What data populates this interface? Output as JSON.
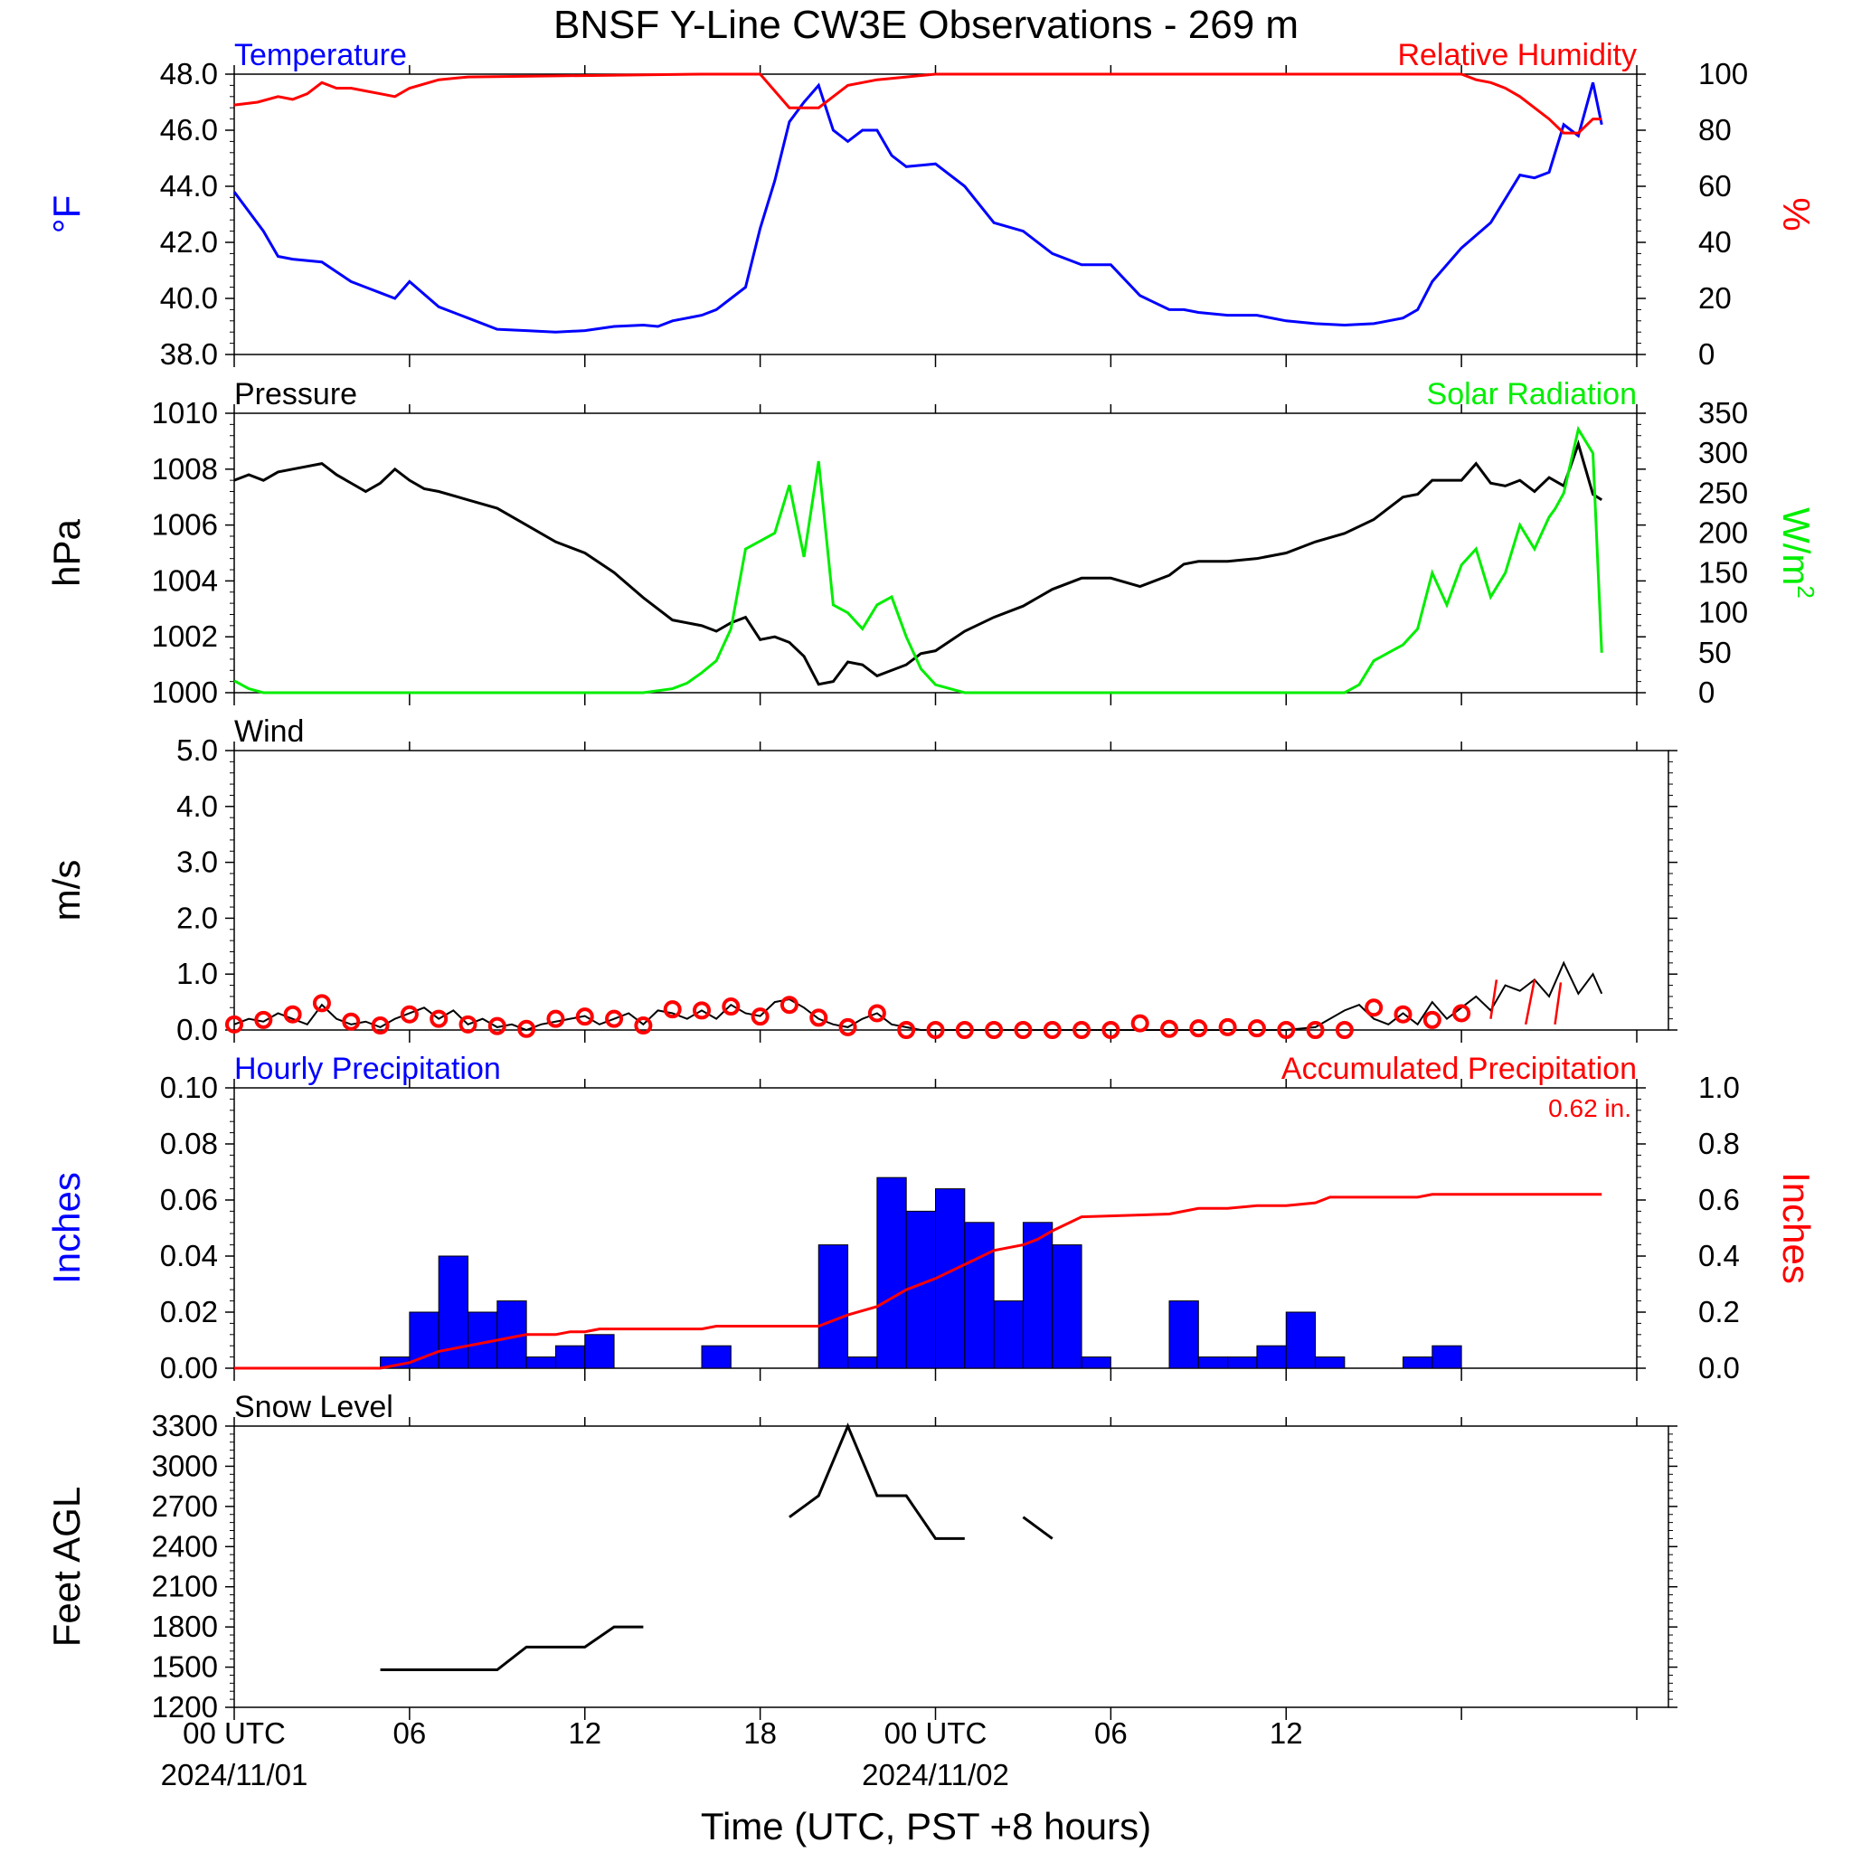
{
  "title": "BNSF Y-Line CW3E Observations - 269 m",
  "x_axis": {
    "title": "Time (UTC, PST +8 hours)",
    "tick_labels": [
      "00 UTC",
      "06",
      "12",
      "18",
      "00 UTC",
      "06",
      "12"
    ],
    "tick_hours": [
      0,
      6,
      12,
      18,
      24,
      30,
      36
    ],
    "date_labels": [
      {
        "hour": 0,
        "text": "2024/11/01"
      },
      {
        "hour": 24,
        "text": "2024/11/02"
      }
    ],
    "range_hours": [
      0,
      48
    ]
  },
  "colors": {
    "blue": "#0000ff",
    "red": "#ff0000",
    "green": "#00ee00",
    "black": "#000000"
  },
  "chart_data": [
    {
      "type": "line",
      "panel": "temperature_rh",
      "left_label": "Temperature",
      "right_label": "Relative Humidity",
      "ylabel_left": "°F",
      "ylabel_right": "%",
      "ylim_left": [
        38,
        48
      ],
      "ylim_right": [
        0,
        100
      ],
      "yticks_left": [
        "38.0",
        "40.0",
        "42.0",
        "44.0",
        "46.0",
        "48.0"
      ],
      "yticks_right": [
        "0",
        "20",
        "40",
        "60",
        "80",
        "100"
      ],
      "series": [
        {
          "name": "Temperature",
          "axis": "left",
          "color": "#0000ff",
          "x": [
            0,
            1,
            1.5,
            2,
            3,
            4,
            4.5,
            5,
            5.5,
            6,
            7,
            8,
            9,
            10,
            11,
            12,
            13,
            14,
            14.5,
            15,
            16,
            16.5,
            17,
            17.5,
            18,
            18.5,
            19,
            19.5,
            20,
            20.5,
            21,
            21.5,
            22,
            22.5,
            23,
            24,
            25,
            26,
            27,
            28,
            29,
            30,
            31,
            32,
            32.5,
            33,
            34,
            35,
            36,
            37,
            38,
            39,
            40,
            40.5,
            41,
            42,
            43,
            44,
            44.5,
            45,
            45.5,
            46,
            46.5,
            46.8
          ],
          "y": [
            43.8,
            42.4,
            41.5,
            41.4,
            41.3,
            40.6,
            40.4,
            40.2,
            40.0,
            40.6,
            39.7,
            39.3,
            38.9,
            38.85,
            38.8,
            38.85,
            39.0,
            39.05,
            39.0,
            39.2,
            39.4,
            39.6,
            40.0,
            40.4,
            42.5,
            44.2,
            46.3,
            47.0,
            47.6,
            46.0,
            45.6,
            46.0,
            46.0,
            45.1,
            44.7,
            44.8,
            44.0,
            42.7,
            42.4,
            41.6,
            41.2,
            41.2,
            40.1,
            39.6,
            39.6,
            39.5,
            39.4,
            39.4,
            39.2,
            39.1,
            39.05,
            39.1,
            39.3,
            39.6,
            40.6,
            41.8,
            42.7,
            44.4,
            44.3,
            44.5,
            46.2,
            45.8,
            47.7,
            46.2
          ]
        },
        {
          "name": "Relative Humidity",
          "axis": "right",
          "color": "#ff0000",
          "x": [
            0,
            0.8,
            1.5,
            2,
            2.5,
            3,
            3.5,
            4,
            4.5,
            5,
            5.5,
            6,
            7,
            8,
            16,
            18,
            18.5,
            19,
            19.5,
            20,
            20.5,
            21,
            22,
            23,
            24,
            30,
            40,
            42,
            42.5,
            43,
            43.5,
            44,
            44.5,
            45,
            45.5,
            46,
            46.5,
            46.8
          ],
          "y": [
            89,
            90,
            92,
            91,
            93,
            97,
            95,
            95,
            94,
            93,
            92,
            95,
            98,
            99,
            100,
            100,
            94,
            88,
            88,
            88,
            92,
            96,
            98,
            99,
            100,
            100,
            100,
            100,
            98,
            97,
            95,
            92,
            88,
            84,
            79,
            79,
            84,
            84
          ]
        }
      ]
    },
    {
      "type": "line",
      "panel": "pressure_solar",
      "left_label": "Pressure",
      "right_label": "Solar Radiation",
      "ylabel_left": "hPa",
      "ylabel_right": "W/m",
      "ylabel_right_sup": "2",
      "ylim_left": [
        1000,
        1010
      ],
      "ylim_right": [
        0,
        350
      ],
      "yticks_left": [
        "1000",
        "1002",
        "1004",
        "1006",
        "1008",
        "1010"
      ],
      "yticks_right": [
        "0",
        "50",
        "100",
        "150",
        "200",
        "250",
        "300",
        "350"
      ],
      "series": [
        {
          "name": "Pressure",
          "axis": "left",
          "color": "#000000",
          "x": [
            0,
            0.5,
            1,
            1.5,
            2,
            3,
            3.5,
            4,
            4.5,
            5,
            5.5,
            6,
            6.5,
            7,
            8,
            9,
            10,
            11,
            12,
            13,
            14,
            15,
            16,
            16.5,
            17,
            17.5,
            18,
            18.5,
            19,
            19.5,
            20,
            20.5,
            21,
            21.5,
            22,
            22.5,
            23,
            23.5,
            24,
            25,
            26,
            27,
            28,
            29,
            30,
            31,
            32,
            32.5,
            33,
            34,
            35,
            36,
            37,
            38,
            39,
            40,
            40.5,
            41,
            42,
            42.5,
            43,
            43.5,
            44,
            44.5,
            45,
            45.5,
            46,
            46.5,
            46.8
          ],
          "y": [
            1007.6,
            1007.8,
            1007.6,
            1007.9,
            1008.0,
            1008.2,
            1007.8,
            1007.5,
            1007.2,
            1007.5,
            1008.0,
            1007.6,
            1007.3,
            1007.2,
            1006.9,
            1006.6,
            1006.0,
            1005.4,
            1005.0,
            1004.3,
            1003.4,
            1002.6,
            1002.4,
            1002.2,
            1002.5,
            1002.7,
            1001.9,
            1002.0,
            1001.8,
            1001.3,
            1000.3,
            1000.4,
            1001.1,
            1001.0,
            1000.6,
            1000.8,
            1001.0,
            1001.4,
            1001.5,
            1002.2,
            1002.7,
            1003.1,
            1003.7,
            1004.1,
            1004.1,
            1003.8,
            1004.2,
            1004.6,
            1004.7,
            1004.7,
            1004.8,
            1005.0,
            1005.4,
            1005.7,
            1006.2,
            1007.0,
            1007.1,
            1007.6,
            1007.6,
            1008.2,
            1007.5,
            1007.4,
            1007.6,
            1007.2,
            1007.7,
            1007.4,
            1008.9,
            1007.1,
            1006.9
          ]
        },
        {
          "name": "Solar Radiation",
          "axis": "right",
          "color": "#00ee00",
          "x": [
            0,
            0.5,
            1,
            14,
            15,
            15.5,
            16,
            16.5,
            17,
            17.5,
            18,
            18.5,
            19,
            19.5,
            20,
            20.5,
            21,
            21.5,
            22,
            22.5,
            23,
            23.5,
            24,
            25,
            38,
            38.5,
            39,
            39.5,
            40,
            40.5,
            41,
            41.5,
            42,
            42.5,
            43,
            43.5,
            44,
            44.5,
            45,
            45.2,
            45.5,
            46,
            46.5,
            46.8
          ],
          "y": [
            15,
            5,
            0,
            0,
            5,
            12,
            25,
            40,
            80,
            180,
            190,
            200,
            260,
            170,
            290,
            110,
            100,
            80,
            110,
            120,
            70,
            30,
            10,
            0,
            0,
            10,
            40,
            50,
            60,
            80,
            150,
            110,
            160,
            180,
            120,
            150,
            210,
            180,
            220,
            230,
            250,
            330,
            300,
            50
          ]
        }
      ]
    },
    {
      "type": "line",
      "panel": "wind",
      "left_label": "Wind",
      "ylabel_left": "m/s",
      "ylim_left": [
        0,
        5
      ],
      "yticks_left": [
        "0.0",
        "1.0",
        "2.0",
        "3.0",
        "4.0",
        "5.0"
      ],
      "series": [
        {
          "name": "Wind",
          "color": "#000000",
          "x": [
            0,
            0.5,
            1,
            1.5,
            2,
            2.5,
            3,
            3.5,
            4,
            4.5,
            5,
            5.5,
            6,
            6.5,
            7,
            7.5,
            8,
            8.5,
            9,
            9.5,
            10,
            10.5,
            11,
            11.5,
            12,
            12.5,
            13,
            13.5,
            14,
            14.5,
            15,
            15.5,
            16,
            16.5,
            17,
            17.5,
            18,
            18.5,
            19,
            19.5,
            20,
            20.5,
            21,
            21.5,
            22,
            22.5,
            23,
            23.5,
            24,
            30,
            36,
            37,
            38,
            38.5,
            39,
            39.5,
            40,
            40.5,
            41,
            41.5,
            42,
            42.5,
            43,
            43.5,
            44,
            44.5,
            45,
            45.5,
            46,
            46.5,
            46.8
          ],
          "y": [
            0.1,
            0.2,
            0.15,
            0.3,
            0.2,
            0.1,
            0.45,
            0.2,
            0.1,
            0.15,
            0.05,
            0.2,
            0.3,
            0.4,
            0.2,
            0.35,
            0.1,
            0.2,
            0.05,
            0.1,
            0.0,
            0.1,
            0.15,
            0.2,
            0.25,
            0.1,
            0.2,
            0.3,
            0.1,
            0.35,
            0.3,
            0.2,
            0.35,
            0.2,
            0.45,
            0.3,
            0.25,
            0.5,
            0.55,
            0.4,
            0.2,
            0.1,
            0.05,
            0.2,
            0.3,
            0.1,
            0.05,
            0.0,
            0.0,
            0.0,
            0.0,
            0.05,
            0.35,
            0.45,
            0.2,
            0.1,
            0.3,
            0.1,
            0.5,
            0.2,
            0.4,
            0.6,
            0.35,
            0.8,
            0.7,
            0.9,
            0.6,
            1.2,
            0.65,
            1.0,
            0.65
          ]
        },
        {
          "name": "Wind samples",
          "color": "#ff0000",
          "x": [
            0,
            1,
            2,
            3,
            4,
            5,
            6,
            7,
            8,
            9,
            10,
            11,
            12,
            13,
            14,
            15,
            16,
            17,
            18,
            19,
            20,
            21,
            22,
            23,
            24,
            25,
            26,
            27,
            28,
            29,
            30,
            31,
            32,
            33,
            34,
            35,
            36,
            37,
            38,
            39,
            40,
            41,
            42
          ],
          "y": [
            0.1,
            0.18,
            0.28,
            0.48,
            0.15,
            0.08,
            0.28,
            0.2,
            0.1,
            0.07,
            0.02,
            0.2,
            0.24,
            0.2,
            0.08,
            0.37,
            0.35,
            0.42,
            0.24,
            0.45,
            0.22,
            0.05,
            0.3,
            0.0,
            0.0,
            0.0,
            0.0,
            0.0,
            0.0,
            0.0,
            0.0,
            0.12,
            0.02,
            0.03,
            0.05,
            0.03,
            0.0,
            0.0,
            0.0,
            0.4,
            0.28,
            0.18,
            0.3
          ]
        }
      ]
    },
    {
      "type": "bar",
      "panel": "precipitation",
      "left_label": "Hourly Precipitation",
      "right_label": "Accumulated Precipitation",
      "total_label": "0.62 in.",
      "ylabel_left": "Inches",
      "ylabel_right": "Inches",
      "ylim_left": [
        0,
        0.1
      ],
      "ylim_right": [
        0,
        1.0
      ],
      "yticks_left": [
        "0.00",
        "0.02",
        "0.04",
        "0.06",
        "0.08",
        "0.10"
      ],
      "yticks_right": [
        "0.0",
        "0.2",
        "0.4",
        "0.6",
        "0.8",
        "1.0"
      ],
      "series": [
        {
          "name": "Hourly Precipitation",
          "axis": "left",
          "color": "#0000ff",
          "x": [
            5,
            6,
            7,
            8,
            9,
            10,
            11,
            12,
            16,
            20,
            21,
            22,
            23,
            24,
            25,
            26,
            27,
            28,
            29,
            32,
            33,
            34,
            35,
            36,
            37,
            40,
            41
          ],
          "values": [
            0.004,
            0.02,
            0.04,
            0.02,
            0.024,
            0.004,
            0.008,
            0.012,
            0.008,
            0.044,
            0.004,
            0.068,
            0.056,
            0.064,
            0.052,
            0.024,
            0.052,
            0.044,
            0.004,
            0.024,
            0.004,
            0.004,
            0.008,
            0.02,
            0.004,
            0.004,
            0.008
          ]
        },
        {
          "name": "Accumulated Precipitation",
          "axis": "right",
          "color": "#ff0000",
          "x": [
            0,
            5,
            6,
            6.5,
            7,
            7.5,
            8,
            8.5,
            9,
            9.5,
            10,
            10.5,
            11,
            11.5,
            12,
            12.5,
            13,
            16,
            16.5,
            20,
            21,
            22,
            23,
            24,
            25,
            26,
            27,
            27.5,
            28,
            29,
            32,
            32.5,
            33,
            34,
            35,
            36,
            37,
            37.5,
            40,
            40.5,
            41,
            46.8
          ],
          "y": [
            0,
            0,
            0.02,
            0.04,
            0.06,
            0.07,
            0.08,
            0.09,
            0.1,
            0.11,
            0.12,
            0.12,
            0.12,
            0.13,
            0.13,
            0.14,
            0.14,
            0.14,
            0.15,
            0.15,
            0.19,
            0.22,
            0.28,
            0.32,
            0.37,
            0.42,
            0.44,
            0.46,
            0.49,
            0.54,
            0.55,
            0.56,
            0.57,
            0.57,
            0.58,
            0.58,
            0.59,
            0.61,
            0.61,
            0.61,
            0.62,
            0.62
          ]
        }
      ]
    },
    {
      "type": "line",
      "panel": "snow_level",
      "left_label": "Snow Level",
      "ylabel_left": "Feet AGL",
      "ylim_left": [
        1200,
        3300
      ],
      "yticks_left": [
        "1200",
        "1500",
        "1800",
        "2100",
        "2400",
        "2700",
        "3000",
        "3300"
      ],
      "series": [
        {
          "name": "Snow Level",
          "color": "#000000",
          "segments": [
            {
              "x": [
                5,
                9,
                10,
                12,
                13,
                14
              ],
              "y": [
                1480,
                1480,
                1650,
                1650,
                1800,
                1800
              ]
            },
            {
              "x": [
                19,
                20,
                21,
                22,
                23,
                24,
                25
              ],
              "y": [
                2620,
                2780,
                3300,
                2780,
                2780,
                2460,
                2460
              ]
            },
            {
              "x": [
                27,
                28
              ],
              "y": [
                2620,
                2460
              ]
            }
          ]
        }
      ]
    }
  ]
}
